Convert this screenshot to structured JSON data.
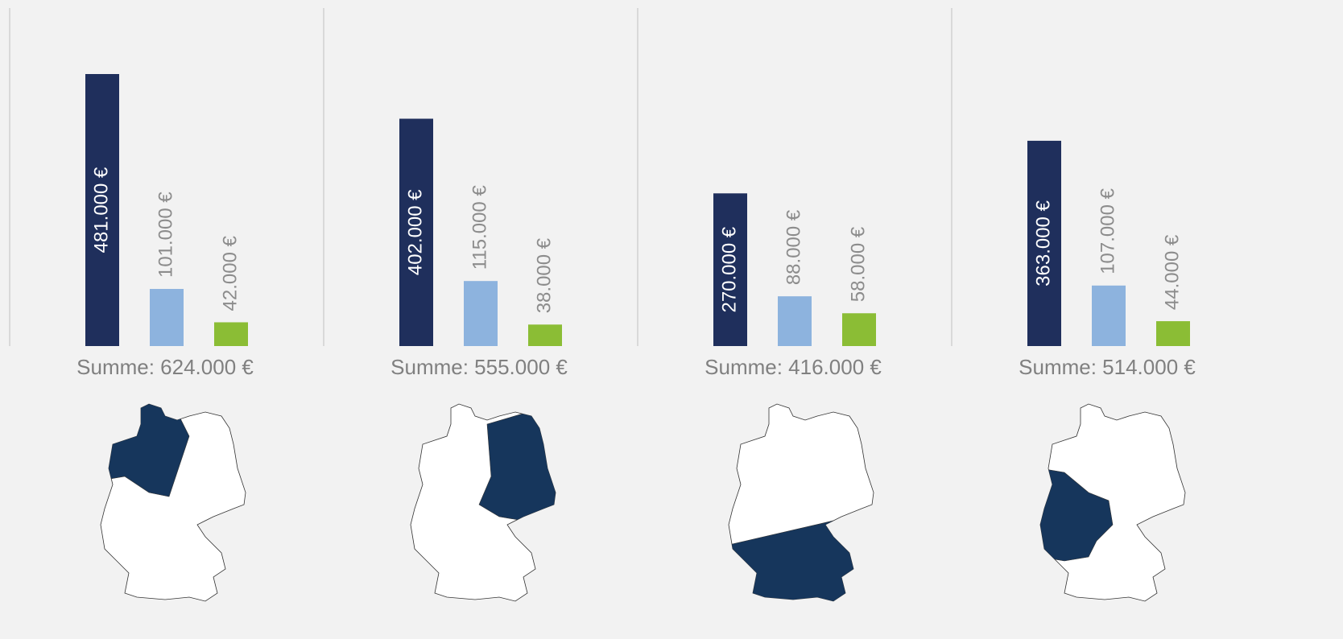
{
  "chart_data": [
    {
      "type": "bar",
      "values": [
        481000,
        101000,
        42000
      ],
      "value_labels": [
        "481.000 €",
        "101.000 €",
        "42.000 €"
      ],
      "colors": [
        "#1f2f5c",
        "#8db3de",
        "#8bbd35"
      ],
      "summary": "Summe: 624.000 €"
    },
    {
      "type": "bar",
      "values": [
        402000,
        115000,
        38000
      ],
      "value_labels": [
        "402.000 €",
        "115.000 €",
        "38.000 €"
      ],
      "colors": [
        "#1f2f5c",
        "#8db3de",
        "#8bbd35"
      ],
      "summary": "Summe: 555.000 €"
    },
    {
      "type": "bar",
      "values": [
        270000,
        88000,
        58000
      ],
      "value_labels": [
        "270.000 €",
        "88.000 €",
        "58.000 €"
      ],
      "colors": [
        "#1f2f5c",
        "#8db3de",
        "#8bbd35"
      ],
      "summary": "Summe: 416.000 €"
    },
    {
      "type": "bar",
      "values": [
        363000,
        107000,
        44000
      ],
      "value_labels": [
        "363.000 €",
        "107.000 €",
        "44.000 €"
      ],
      "colors": [
        "#1f2f5c",
        "#8db3de",
        "#8bbd35"
      ],
      "summary": "Summe: 514.000 €"
    }
  ]
}
